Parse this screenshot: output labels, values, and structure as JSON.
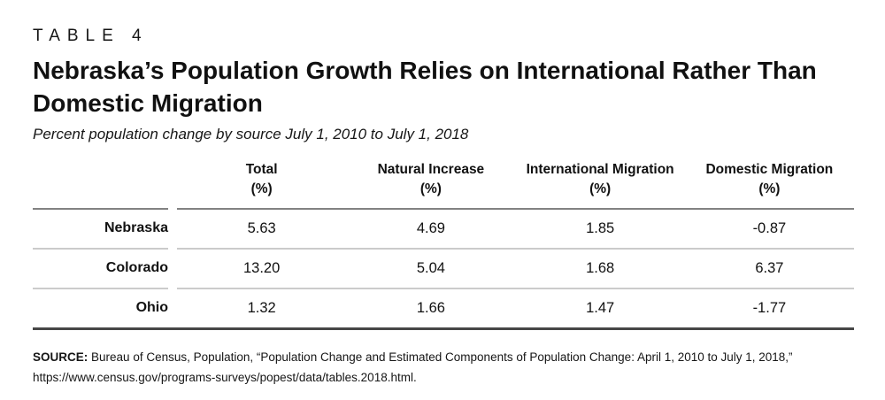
{
  "header": {
    "kicker": "TABLE 4",
    "title": "Nebraska’s Population Growth Relies on International Rather Than Domestic Migration",
    "subtitle": "Percent population change by source July 1, 2010 to July 1, 2018"
  },
  "table": {
    "unit_label": "(%)",
    "columns": [
      "Total",
      "Natural Increase",
      "International Migration",
      "Domestic Migration"
    ],
    "rows": [
      {
        "label": "Nebraska",
        "values": [
          "5.63",
          "4.69",
          "1.85",
          "-0.87"
        ]
      },
      {
        "label": "Colorado",
        "values": [
          "13.20",
          "5.04",
          "1.68",
          "6.37"
        ]
      },
      {
        "label": "Ohio",
        "values": [
          "1.32",
          "1.66",
          "1.47",
          "-1.77"
        ]
      }
    ]
  },
  "source": {
    "label": "SOURCE:",
    "text": "Bureau of Census, Population, “Population Change and Estimated Components of Population Change: April 1, 2010 to July 1, 2018,” https://www.census.gov/programs-surveys/popest/data/tables.2018.html."
  },
  "colors": {
    "background": "#ffffff",
    "text": "#111111",
    "header_rule": "#828282",
    "row_separator": "#cbcbcb",
    "bottom_rule": "#474747"
  },
  "chart_data": {
    "type": "table",
    "title": "Nebraska’s Population Growth Relies on International Rather Than Domestic Migration",
    "subtitle": "Percent population change by source July 1, 2010 to July 1, 2018",
    "columns": [
      "Total (%)",
      "Natural Increase (%)",
      "International Migration (%)",
      "Domestic Migration (%)"
    ],
    "rows": [
      {
        "label": "Nebraska",
        "values": [
          5.63,
          4.69,
          1.85,
          -0.87
        ]
      },
      {
        "label": "Colorado",
        "values": [
          13.2,
          5.04,
          1.68,
          6.37
        ]
      },
      {
        "label": "Ohio",
        "values": [
          1.32,
          1.66,
          1.47,
          -1.77
        ]
      }
    ]
  }
}
